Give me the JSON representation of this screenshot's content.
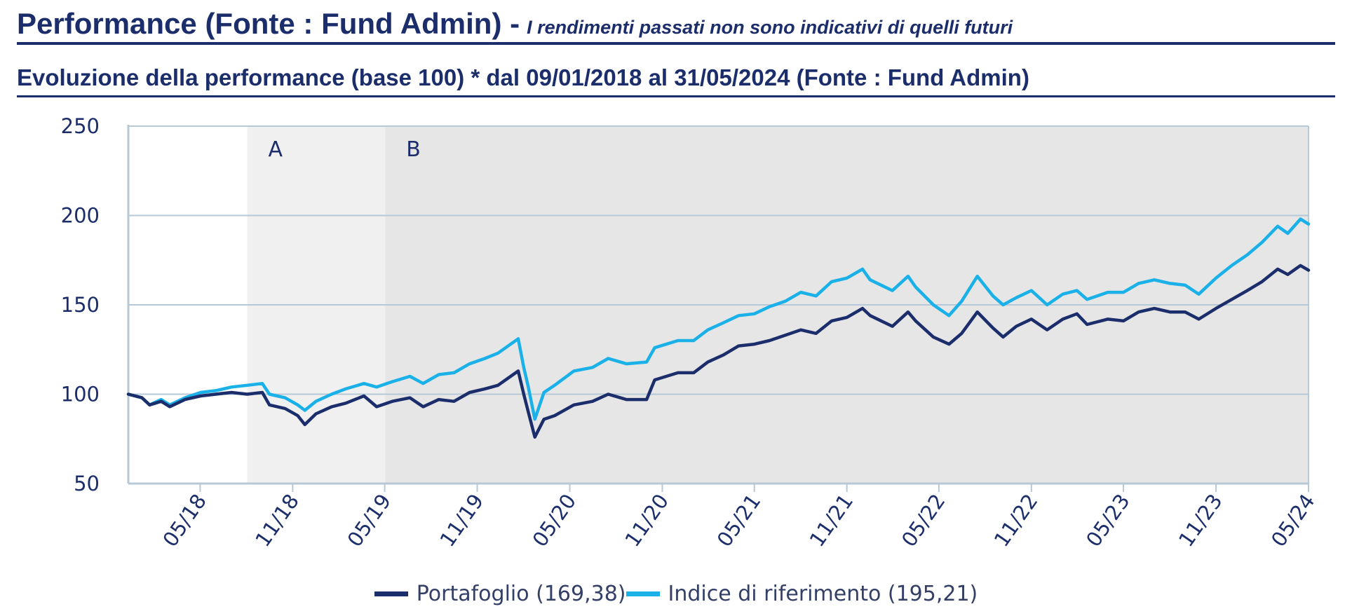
{
  "header": {
    "title": "Performance (Fonte : Fund Admin) -",
    "disclaimer": "I rendimenti passati non sono indicativi di quelli futuri"
  },
  "chart_title": "Evoluzione della performance (base 100) * dal 09/01/2018 al 31/05/2024 (Fonte : Fund Admin)",
  "colors": {
    "portfolio": "#1b2e6b",
    "index": "#1ab0e8",
    "period_a": "#f0f0f0",
    "period_b": "#e6e6e6",
    "gridline": "#b7c8d6"
  },
  "chart_data": {
    "type": "line",
    "title": "Evoluzione della performance (base 100) * dal 09/01/2018 al 31/05/2024 (Fonte : Fund Admin)",
    "x_start": "2018-01-09",
    "x_end": "2024-05-31",
    "ylim": [
      50,
      250
    ],
    "yticks": [
      50,
      100,
      150,
      200,
      250
    ],
    "xtick_labels": [
      "05/18",
      "11/18",
      "05/19",
      "11/19",
      "05/20",
      "11/20",
      "05/21",
      "11/21",
      "05/22",
      "11/22",
      "05/23",
      "11/23",
      "05/24"
    ],
    "xtick_dates": [
      "2018-05-31",
      "2018-11-30",
      "2019-05-31",
      "2019-11-30",
      "2020-05-31",
      "2020-11-30",
      "2021-05-31",
      "2021-11-30",
      "2022-05-31",
      "2022-11-30",
      "2023-05-31",
      "2023-11-30",
      "2024-05-31"
    ],
    "grid": true,
    "legend": "bottom-center",
    "periods": [
      {
        "label": "A",
        "start": "2018-09-01",
        "end": "2019-06-01"
      },
      {
        "label": "B",
        "start": "2019-06-01",
        "end": "2024-05-31"
      }
    ],
    "series": [
      {
        "name": "Portafoglio",
        "legend_label": "Portafoglio (169,38)",
        "points": [
          [
            "2018-01-09",
            100
          ],
          [
            "2018-02-05",
            98
          ],
          [
            "2018-02-20",
            94
          ],
          [
            "2018-03-15",
            96
          ],
          [
            "2018-04-01",
            93
          ],
          [
            "2018-05-01",
            97
          ],
          [
            "2018-06-01",
            99
          ],
          [
            "2018-07-01",
            100
          ],
          [
            "2018-08-01",
            101
          ],
          [
            "2018-09-01",
            100
          ],
          [
            "2018-10-01",
            101
          ],
          [
            "2018-10-15",
            94
          ],
          [
            "2018-11-15",
            92
          ],
          [
            "2018-12-10",
            88
          ],
          [
            "2018-12-24",
            83
          ],
          [
            "2019-01-15",
            89
          ],
          [
            "2019-02-15",
            93
          ],
          [
            "2019-03-15",
            95
          ],
          [
            "2019-04-20",
            99
          ],
          [
            "2019-05-15",
            93
          ],
          [
            "2019-06-15",
            96
          ],
          [
            "2019-07-20",
            98
          ],
          [
            "2019-08-15",
            93
          ],
          [
            "2019-09-15",
            97
          ],
          [
            "2019-10-15",
            96
          ],
          [
            "2019-11-15",
            101
          ],
          [
            "2019-12-15",
            103
          ],
          [
            "2020-01-10",
            105
          ],
          [
            "2020-02-19",
            113
          ],
          [
            "2020-03-01",
            100
          ],
          [
            "2020-03-10",
            90
          ],
          [
            "2020-03-23",
            76
          ],
          [
            "2020-04-10",
            86
          ],
          [
            "2020-05-01",
            88
          ],
          [
            "2020-06-08",
            94
          ],
          [
            "2020-07-15",
            96
          ],
          [
            "2020-08-15",
            100
          ],
          [
            "2020-09-20",
            97
          ],
          [
            "2020-10-30",
            97
          ],
          [
            "2020-11-15",
            108
          ],
          [
            "2020-12-31",
            112
          ],
          [
            "2021-01-31",
            112
          ],
          [
            "2021-02-28",
            118
          ],
          [
            "2021-03-31",
            122
          ],
          [
            "2021-04-30",
            127
          ],
          [
            "2021-05-31",
            128
          ],
          [
            "2021-06-30",
            130
          ],
          [
            "2021-07-31",
            133
          ],
          [
            "2021-08-31",
            136
          ],
          [
            "2021-09-30",
            134
          ],
          [
            "2021-10-31",
            141
          ],
          [
            "2021-11-30",
            143
          ],
          [
            "2021-12-31",
            148
          ],
          [
            "2022-01-15",
            144
          ],
          [
            "2022-02-28",
            138
          ],
          [
            "2022-03-31",
            146
          ],
          [
            "2022-04-15",
            141
          ],
          [
            "2022-05-20",
            132
          ],
          [
            "2022-06-20",
            128
          ],
          [
            "2022-07-15",
            134
          ],
          [
            "2022-08-15",
            146
          ],
          [
            "2022-09-15",
            137
          ],
          [
            "2022-10-05",
            132
          ],
          [
            "2022-10-31",
            138
          ],
          [
            "2022-11-30",
            142
          ],
          [
            "2022-12-31",
            136
          ],
          [
            "2023-01-31",
            142
          ],
          [
            "2023-02-28",
            145
          ],
          [
            "2023-03-20",
            139
          ],
          [
            "2023-04-30",
            142
          ],
          [
            "2023-05-31",
            141
          ],
          [
            "2023-06-30",
            146
          ],
          [
            "2023-07-31",
            148
          ],
          [
            "2023-08-31",
            146
          ],
          [
            "2023-09-30",
            146
          ],
          [
            "2023-10-27",
            142
          ],
          [
            "2023-11-30",
            148
          ],
          [
            "2023-12-31",
            153
          ],
          [
            "2024-01-31",
            158
          ],
          [
            "2024-02-29",
            163
          ],
          [
            "2024-03-31",
            170
          ],
          [
            "2024-04-20",
            167
          ],
          [
            "2024-05-15",
            172
          ],
          [
            "2024-05-31",
            169.38
          ]
        ]
      },
      {
        "name": "Indice di riferimento",
        "legend_label": "Indice di riferimento (195,21)",
        "points": [
          [
            "2018-01-09",
            100
          ],
          [
            "2018-02-05",
            98
          ],
          [
            "2018-02-20",
            94
          ],
          [
            "2018-03-15",
            97
          ],
          [
            "2018-04-01",
            94
          ],
          [
            "2018-05-01",
            98
          ],
          [
            "2018-06-01",
            101
          ],
          [
            "2018-07-01",
            102
          ],
          [
            "2018-08-01",
            104
          ],
          [
            "2018-09-01",
            105
          ],
          [
            "2018-10-01",
            106
          ],
          [
            "2018-10-15",
            100
          ],
          [
            "2018-11-15",
            98
          ],
          [
            "2018-12-10",
            94
          ],
          [
            "2018-12-24",
            91
          ],
          [
            "2019-01-15",
            96
          ],
          [
            "2019-02-15",
            100
          ],
          [
            "2019-03-15",
            103
          ],
          [
            "2019-04-20",
            106
          ],
          [
            "2019-05-15",
            104
          ],
          [
            "2019-06-15",
            107
          ],
          [
            "2019-07-20",
            110
          ],
          [
            "2019-08-15",
            106
          ],
          [
            "2019-09-15",
            111
          ],
          [
            "2019-10-15",
            112
          ],
          [
            "2019-11-15",
            117
          ],
          [
            "2019-12-15",
            120
          ],
          [
            "2020-01-10",
            123
          ],
          [
            "2020-02-19",
            131
          ],
          [
            "2020-03-01",
            115
          ],
          [
            "2020-03-10",
            104
          ],
          [
            "2020-03-23",
            86
          ],
          [
            "2020-04-10",
            101
          ],
          [
            "2020-05-01",
            105
          ],
          [
            "2020-06-08",
            113
          ],
          [
            "2020-07-15",
            115
          ],
          [
            "2020-08-15",
            120
          ],
          [
            "2020-09-20",
            117
          ],
          [
            "2020-10-30",
            118
          ],
          [
            "2020-11-15",
            126
          ],
          [
            "2020-12-31",
            130
          ],
          [
            "2021-01-31",
            130
          ],
          [
            "2021-02-28",
            136
          ],
          [
            "2021-03-31",
            140
          ],
          [
            "2021-04-30",
            144
          ],
          [
            "2021-05-31",
            145
          ],
          [
            "2021-06-30",
            149
          ],
          [
            "2021-07-31",
            152
          ],
          [
            "2021-08-31",
            157
          ],
          [
            "2021-09-30",
            155
          ],
          [
            "2021-10-31",
            163
          ],
          [
            "2021-11-30",
            165
          ],
          [
            "2021-12-31",
            170
          ],
          [
            "2022-01-15",
            164
          ],
          [
            "2022-02-28",
            158
          ],
          [
            "2022-03-31",
            166
          ],
          [
            "2022-04-15",
            160
          ],
          [
            "2022-05-20",
            150
          ],
          [
            "2022-06-20",
            144
          ],
          [
            "2022-07-15",
            152
          ],
          [
            "2022-08-15",
            166
          ],
          [
            "2022-09-15",
            155
          ],
          [
            "2022-10-05",
            150
          ],
          [
            "2022-10-31",
            154
          ],
          [
            "2022-11-30",
            158
          ],
          [
            "2022-12-31",
            150
          ],
          [
            "2023-01-31",
            156
          ],
          [
            "2023-02-28",
            158
          ],
          [
            "2023-03-20",
            153
          ],
          [
            "2023-04-30",
            157
          ],
          [
            "2023-05-31",
            157
          ],
          [
            "2023-06-30",
            162
          ],
          [
            "2023-07-31",
            164
          ],
          [
            "2023-08-31",
            162
          ],
          [
            "2023-09-30",
            161
          ],
          [
            "2023-10-27",
            156
          ],
          [
            "2023-11-30",
            165
          ],
          [
            "2023-12-31",
            172
          ],
          [
            "2024-01-31",
            178
          ],
          [
            "2024-02-29",
            185
          ],
          [
            "2024-03-31",
            194
          ],
          [
            "2024-04-20",
            190
          ],
          [
            "2024-05-15",
            198
          ],
          [
            "2024-05-31",
            195.21
          ]
        ]
      }
    ]
  }
}
